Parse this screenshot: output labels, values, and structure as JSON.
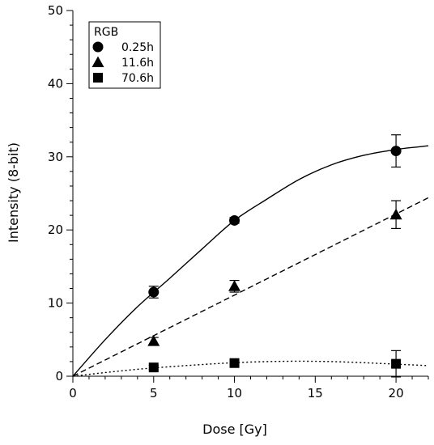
{
  "chart_data": {
    "type": "scatter",
    "xlabel": "Dose [Gy]",
    "ylabel": "Intensity (8-bit)",
    "xlim": [
      0,
      22
    ],
    "ylim": [
      0,
      50
    ],
    "x_ticks": [
      0,
      5,
      10,
      15,
      20
    ],
    "y_ticks": [
      0,
      10,
      20,
      30,
      40,
      50
    ],
    "grid": false,
    "legend": {
      "title": "RGB",
      "placement": "top-left"
    },
    "series": [
      {
        "name": "0.25h",
        "marker": "circle",
        "x": [
          5,
          10,
          20
        ],
        "y": [
          11.5,
          21.3,
          30.8
        ],
        "err": [
          0.8,
          0.4,
          2.2
        ],
        "fit": {
          "style": "solid",
          "x": [
            0,
            2,
            4,
            6,
            8,
            10,
            12,
            14,
            16,
            18,
            20,
            22
          ],
          "y": [
            0,
            5.0,
            9.5,
            13.4,
            17.4,
            21.3,
            24.2,
            26.9,
            28.9,
            30.2,
            31.0,
            31.5
          ]
        }
      },
      {
        "name": "11.6h",
        "marker": "triangle",
        "x": [
          5,
          10,
          20
        ],
        "y": [
          4.8,
          12.3,
          22.1
        ],
        "err": [
          0.5,
          0.8,
          1.9
        ],
        "fit": {
          "style": "dashed",
          "x": [
            0,
            22
          ],
          "y": [
            0,
            24.4
          ]
        }
      },
      {
        "name": "70.6h",
        "marker": "square",
        "x": [
          5,
          10,
          20
        ],
        "y": [
          1.2,
          1.8,
          1.7
        ],
        "err": [
          0.3,
          0.3,
          1.8
        ],
        "fit": {
          "style": "dotted",
          "x": [
            0,
            2,
            4,
            6,
            8,
            10,
            12,
            14,
            16,
            18,
            20,
            22
          ],
          "y": [
            0,
            0.5,
            0.95,
            1.3,
            1.6,
            1.85,
            2.0,
            2.05,
            2.0,
            1.85,
            1.65,
            1.45
          ]
        }
      }
    ]
  }
}
